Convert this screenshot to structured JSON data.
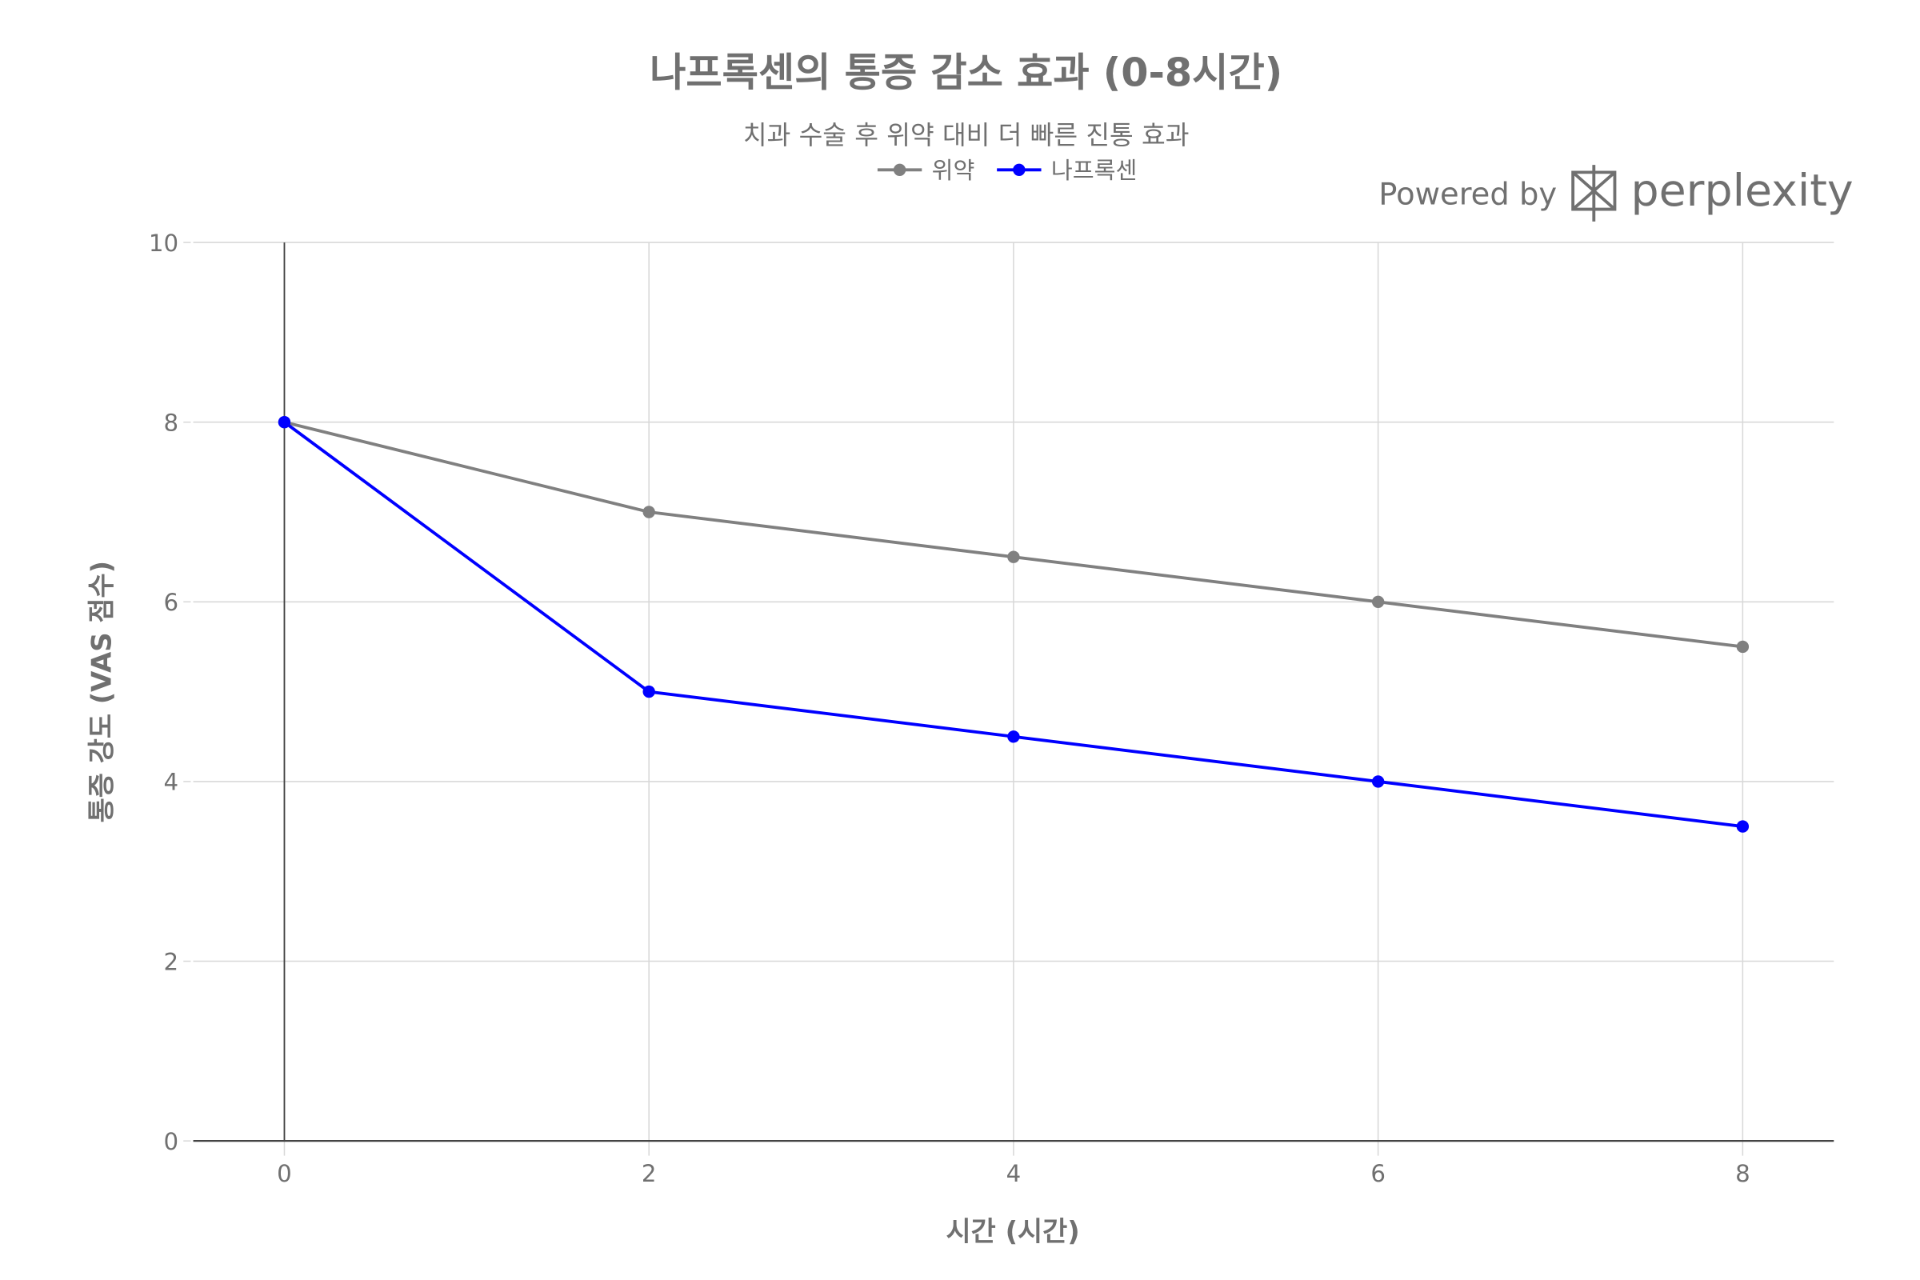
{
  "chart_data": {
    "type": "line",
    "title": "나프록센의 통증 감소 효과 (0-8시간)",
    "subtitle": "치과 수술 후 위약 대비 더 빠른 진통 효과",
    "xlabel": "시간 (시간)",
    "ylabel": "통증 강도 (VAS 점수)",
    "x": [
      0,
      2,
      4,
      6,
      8
    ],
    "xlim": [
      -0.5,
      8.5
    ],
    "ylim": [
      0,
      10
    ],
    "xticks": [
      "0",
      "2",
      "4",
      "6",
      "8"
    ],
    "yticks": [
      "0",
      "2",
      "4",
      "6",
      "8",
      "10"
    ],
    "grid": true,
    "legend_position": "top-center",
    "series": [
      {
        "name": "위약",
        "values": [
          8,
          7,
          6.5,
          6,
          5.5
        ],
        "color": "#808080"
      },
      {
        "name": "나프록센",
        "values": [
          8,
          5,
          4.5,
          4,
          3.5
        ],
        "color": "#0000ff"
      }
    ]
  },
  "watermark": {
    "prefix": "Powered by",
    "brand": "perplexity"
  }
}
